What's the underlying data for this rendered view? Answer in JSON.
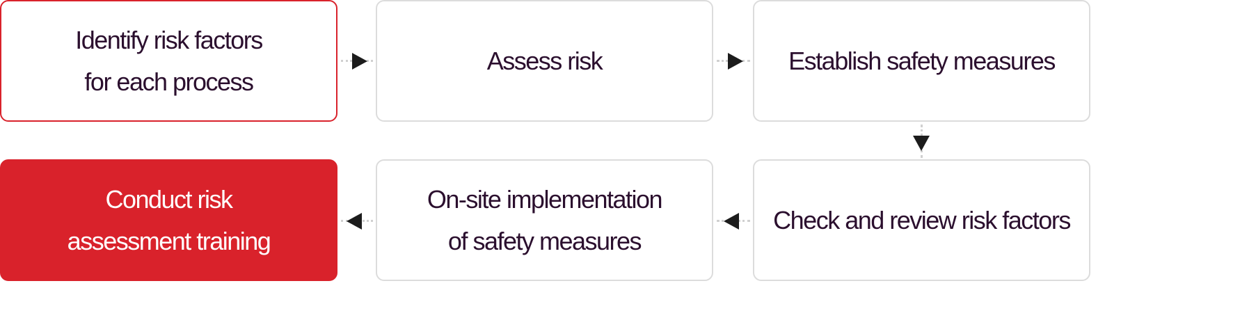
{
  "steps": [
    {
      "label": "Identify risk factors\nfor each process"
    },
    {
      "label": "Assess risk"
    },
    {
      "label": "Establish safety measures"
    },
    {
      "label": "Check and review risk factors"
    },
    {
      "label": "On-site implementation\nof safety measures"
    },
    {
      "label": "Conduct risk\nassessment training"
    }
  ],
  "colors": {
    "accent": "#d9222b",
    "text": "#2b0f2e",
    "border": "#dcdcdc",
    "arrow": "#1c1c1c"
  }
}
